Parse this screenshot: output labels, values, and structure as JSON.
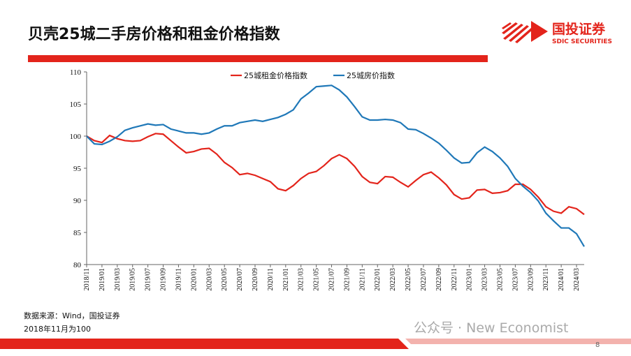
{
  "header": {
    "title": "贝壳25城二手房价格和租金价格指数",
    "logo_text": "国投证券",
    "logo_subtext": "SDIC SECURITIES"
  },
  "chart_data": {
    "type": "line",
    "categories": [
      "2018/11",
      null,
      "2019/01",
      null,
      "2019/03",
      null,
      "2019/05",
      null,
      "2019/07",
      null,
      "2019/09",
      null,
      "2019/11",
      null,
      "2020/01",
      null,
      "2020/03",
      null,
      "2020/05",
      null,
      "2020/07",
      null,
      "2020/09",
      null,
      "2020/11",
      null,
      "2021/01",
      null,
      "2021/03",
      null,
      "2021/05",
      null,
      "2021/07",
      null,
      "2021/09",
      null,
      "2021/11",
      null,
      "2022/01",
      null,
      "2022/03",
      null,
      "2022/05",
      null,
      "2022/07",
      null,
      "2022/09",
      null,
      "2022/11",
      null,
      "2023/01",
      null,
      "2023/03",
      null,
      "2023/05",
      null,
      "2023/07",
      null,
      "2023/09",
      null,
      "2023/11",
      null,
      "2024/01",
      null,
      "2024/03",
      null
    ],
    "series": [
      {
        "name": "25城租金价格指数",
        "color": "#e3241b",
        "values": [
          100,
          99.3,
          99.0,
          100.1,
          99.6,
          99.3,
          99.2,
          99.3,
          99.9,
          100.4,
          100.3,
          99.3,
          98.3,
          97.4,
          97.6,
          98.0,
          98.1,
          97.2,
          95.9,
          95.1,
          94.0,
          94.2,
          93.9,
          93.4,
          92.9,
          91.8,
          91.5,
          92.3,
          93.4,
          94.2,
          94.5,
          95.4,
          96.5,
          97.1,
          96.5,
          95.3,
          93.7,
          92.8,
          92.6,
          93.7,
          93.6,
          92.8,
          92.1,
          93.1,
          94.0,
          94.4,
          93.5,
          92.4,
          90.9,
          90.2,
          90.4,
          91.6,
          91.7,
          91.1,
          91.2,
          91.5,
          92.5,
          92.5,
          91.7,
          90.5,
          89.0,
          88.3,
          88.0,
          89.0,
          88.7,
          87.8
        ]
      },
      {
        "name": "25城房价指数",
        "color": "#1f78b8",
        "values": [
          100,
          98.8,
          98.7,
          99.2,
          99.9,
          100.9,
          101.3,
          101.6,
          101.9,
          101.7,
          101.8,
          101.1,
          100.8,
          100.5,
          100.5,
          100.3,
          100.5,
          101.1,
          101.6,
          101.6,
          102.1,
          102.3,
          102.5,
          102.3,
          102.6,
          102.9,
          103.4,
          104.1,
          105.8,
          106.7,
          107.7,
          107.8,
          107.9,
          107.2,
          106.1,
          104.6,
          103.0,
          102.5,
          102.5,
          102.6,
          102.5,
          102.1,
          101.1,
          101.0,
          100.4,
          99.7,
          98.9,
          97.8,
          96.6,
          95.8,
          95.9,
          97.4,
          98.3,
          97.6,
          96.6,
          95.3,
          93.4,
          92.2,
          91.2,
          89.9,
          88.0,
          86.8,
          85.7,
          85.7,
          84.8,
          82.8
        ]
      }
    ],
    "ylim": [
      80,
      110
    ],
    "yticks": [
      80,
      85,
      90,
      95,
      100,
      105,
      110
    ],
    "grid": false,
    "legend": "top"
  },
  "notes": [
    "数据来源：Wind，国投证券",
    "2018年11月为100"
  ],
  "watermark": "公众号 · New Economist",
  "page_number": "8"
}
